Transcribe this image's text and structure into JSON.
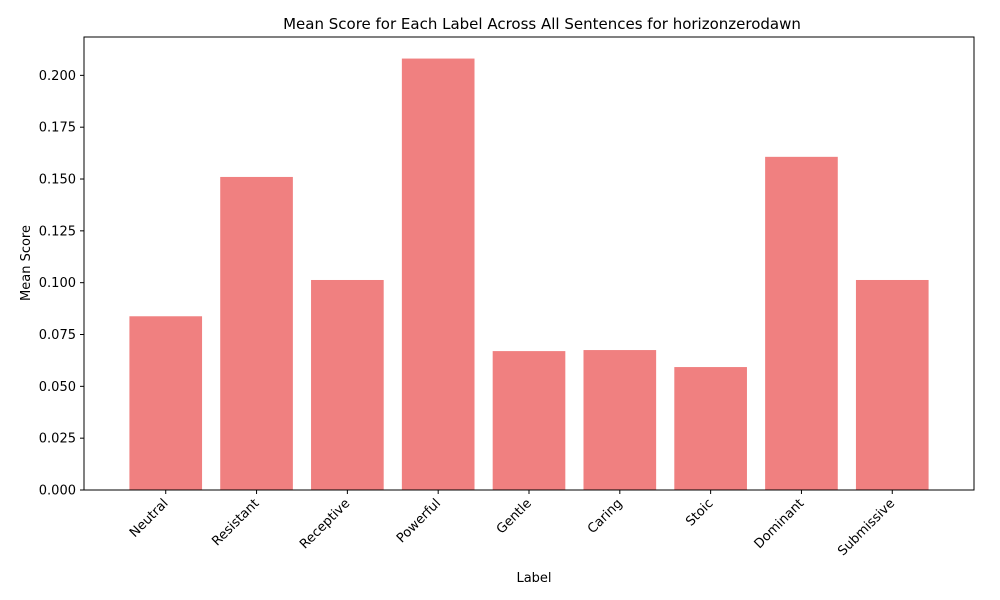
{
  "chart_data": {
    "type": "bar",
    "title": "Mean Score for Each Label Across All Sentences for horizonzerodawn",
    "xlabel": "Label",
    "ylabel": "Mean Score",
    "categories": [
      "Neutral",
      "Resistant",
      "Receptive",
      "Powerful",
      "Gentle",
      "Caring",
      "Stoic",
      "Dominant",
      "Submissive"
    ],
    "values": [
      0.0838,
      0.151,
      0.1013,
      0.2081,
      0.067,
      0.0675,
      0.0593,
      0.1607,
      0.1013
    ],
    "ylim": [
      0,
      0.2185
    ],
    "yticks": [
      "0.000",
      "0.025",
      "0.050",
      "0.075",
      "0.100",
      "0.125",
      "0.150",
      "0.175",
      "0.200"
    ],
    "bar_color": "#f08080",
    "grid": false,
    "legend": false
  }
}
